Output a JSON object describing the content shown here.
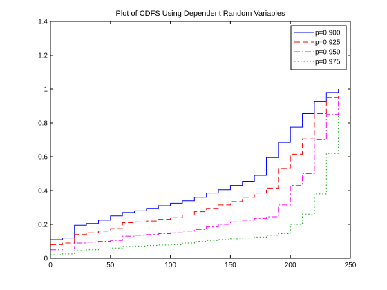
{
  "chart_data": {
    "type": "line",
    "title": "Plot of CDFS Using Dependent Random Variables",
    "xlabel": "",
    "ylabel": "",
    "xlim": [
      0,
      250
    ],
    "ylim": [
      0,
      1.4
    ],
    "xticks": [
      "0",
      "50",
      "100",
      "150",
      "200",
      "250"
    ],
    "yticks": [
      "0",
      "0.2",
      "0.4",
      "0.6",
      "0.8",
      "1",
      "1.2",
      "1.4"
    ],
    "grid": false,
    "legend_position": "top-right",
    "step": true,
    "series": [
      {
        "name": "p=0.900",
        "color": "#0000ff",
        "dash": "solid",
        "x": [
          0,
          10,
          20,
          30,
          40,
          50,
          60,
          70,
          80,
          90,
          100,
          110,
          120,
          130,
          140,
          150,
          160,
          170,
          180,
          190,
          200,
          210,
          220,
          230,
          240
        ],
        "y": [
          0.11,
          0.12,
          0.195,
          0.205,
          0.225,
          0.25,
          0.27,
          0.28,
          0.295,
          0.31,
          0.325,
          0.34,
          0.36,
          0.385,
          0.405,
          0.43,
          0.455,
          0.49,
          0.595,
          0.685,
          0.775,
          0.855,
          0.925,
          0.98,
          1.0
        ]
      },
      {
        "name": "p=0.925",
        "color": "#ff0000",
        "dash": "dash",
        "x": [
          0,
          10,
          20,
          30,
          40,
          50,
          60,
          70,
          80,
          90,
          100,
          110,
          120,
          130,
          140,
          150,
          160,
          170,
          180,
          190,
          200,
          210,
          220,
          230,
          240
        ],
        "y": [
          0.08,
          0.09,
          0.14,
          0.15,
          0.16,
          0.175,
          0.21,
          0.215,
          0.22,
          0.23,
          0.24,
          0.255,
          0.275,
          0.295,
          0.315,
          0.335,
          0.36,
          0.385,
          0.415,
          0.53,
          0.615,
          0.705,
          0.855,
          0.95,
          0.98
        ]
      },
      {
        "name": "p=0.950",
        "color": "#ff00ff",
        "dash": "dashdot",
        "x": [
          0,
          10,
          20,
          30,
          40,
          50,
          60,
          70,
          80,
          90,
          100,
          110,
          120,
          130,
          140,
          150,
          160,
          170,
          180,
          190,
          200,
          210,
          220,
          230,
          240
        ],
        "y": [
          0.05,
          0.055,
          0.09,
          0.095,
          0.1,
          0.105,
          0.13,
          0.135,
          0.14,
          0.145,
          0.15,
          0.16,
          0.17,
          0.185,
          0.2,
          0.215,
          0.225,
          0.235,
          0.245,
          0.315,
          0.43,
          0.5,
          0.7,
          0.85,
          0.95
        ]
      },
      {
        "name": "p=0.975",
        "color": "#00a000",
        "dash": "dot",
        "x": [
          0,
          10,
          20,
          30,
          40,
          50,
          60,
          70,
          80,
          90,
          100,
          110,
          120,
          130,
          140,
          150,
          160,
          170,
          180,
          190,
          200,
          210,
          220,
          230,
          240
        ],
        "y": [
          0.02,
          0.025,
          0.045,
          0.05,
          0.055,
          0.06,
          0.07,
          0.072,
          0.075,
          0.078,
          0.08,
          0.09,
          0.1,
          0.105,
          0.11,
          0.115,
          0.12,
          0.125,
          0.135,
          0.145,
          0.2,
          0.26,
          0.38,
          0.62,
          0.86
        ]
      }
    ]
  }
}
